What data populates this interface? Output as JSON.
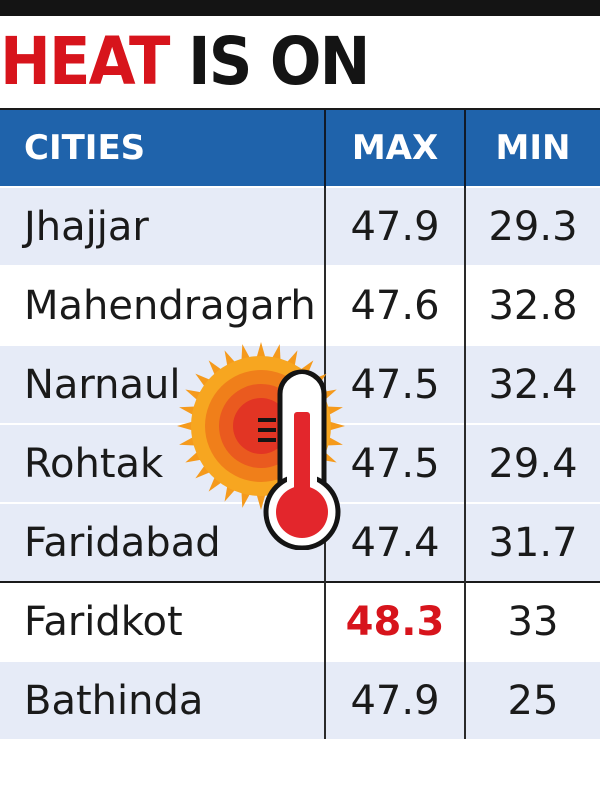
{
  "title": {
    "word1": "HEAT",
    "word2": "IS ON"
  },
  "table": {
    "headers": {
      "city": "CITIES",
      "max": "MAX",
      "min": "MIN"
    },
    "rows": [
      {
        "city": "Jhajjar",
        "max": "47.9",
        "min": "29.3"
      },
      {
        "city": "Mahendragarh",
        "max": "47.6",
        "min": "32.8"
      },
      {
        "city": "Narnaul",
        "max": "47.5",
        "min": "32.4"
      },
      {
        "city": "Rohtak",
        "max": "47.5",
        "min": "29.4"
      },
      {
        "city": "Faridabad",
        "max": "47.4",
        "min": "31.7"
      },
      {
        "city": "Faridkot",
        "max": "48.3",
        "min": "33"
      },
      {
        "city": "Bathinda",
        "max": "47.9",
        "min": "25"
      }
    ],
    "highlight_color": "#d7141c"
  },
  "icons": [
    "sun-icon",
    "thermometer-icon"
  ],
  "colors": {
    "title_red": "#d7141c",
    "title_black": "#141414",
    "header_blue": "#1f63ab",
    "row_shade": "#e6ebf7",
    "sun_orange": "#f59a1c",
    "thermometer_red": "#e3262c"
  }
}
